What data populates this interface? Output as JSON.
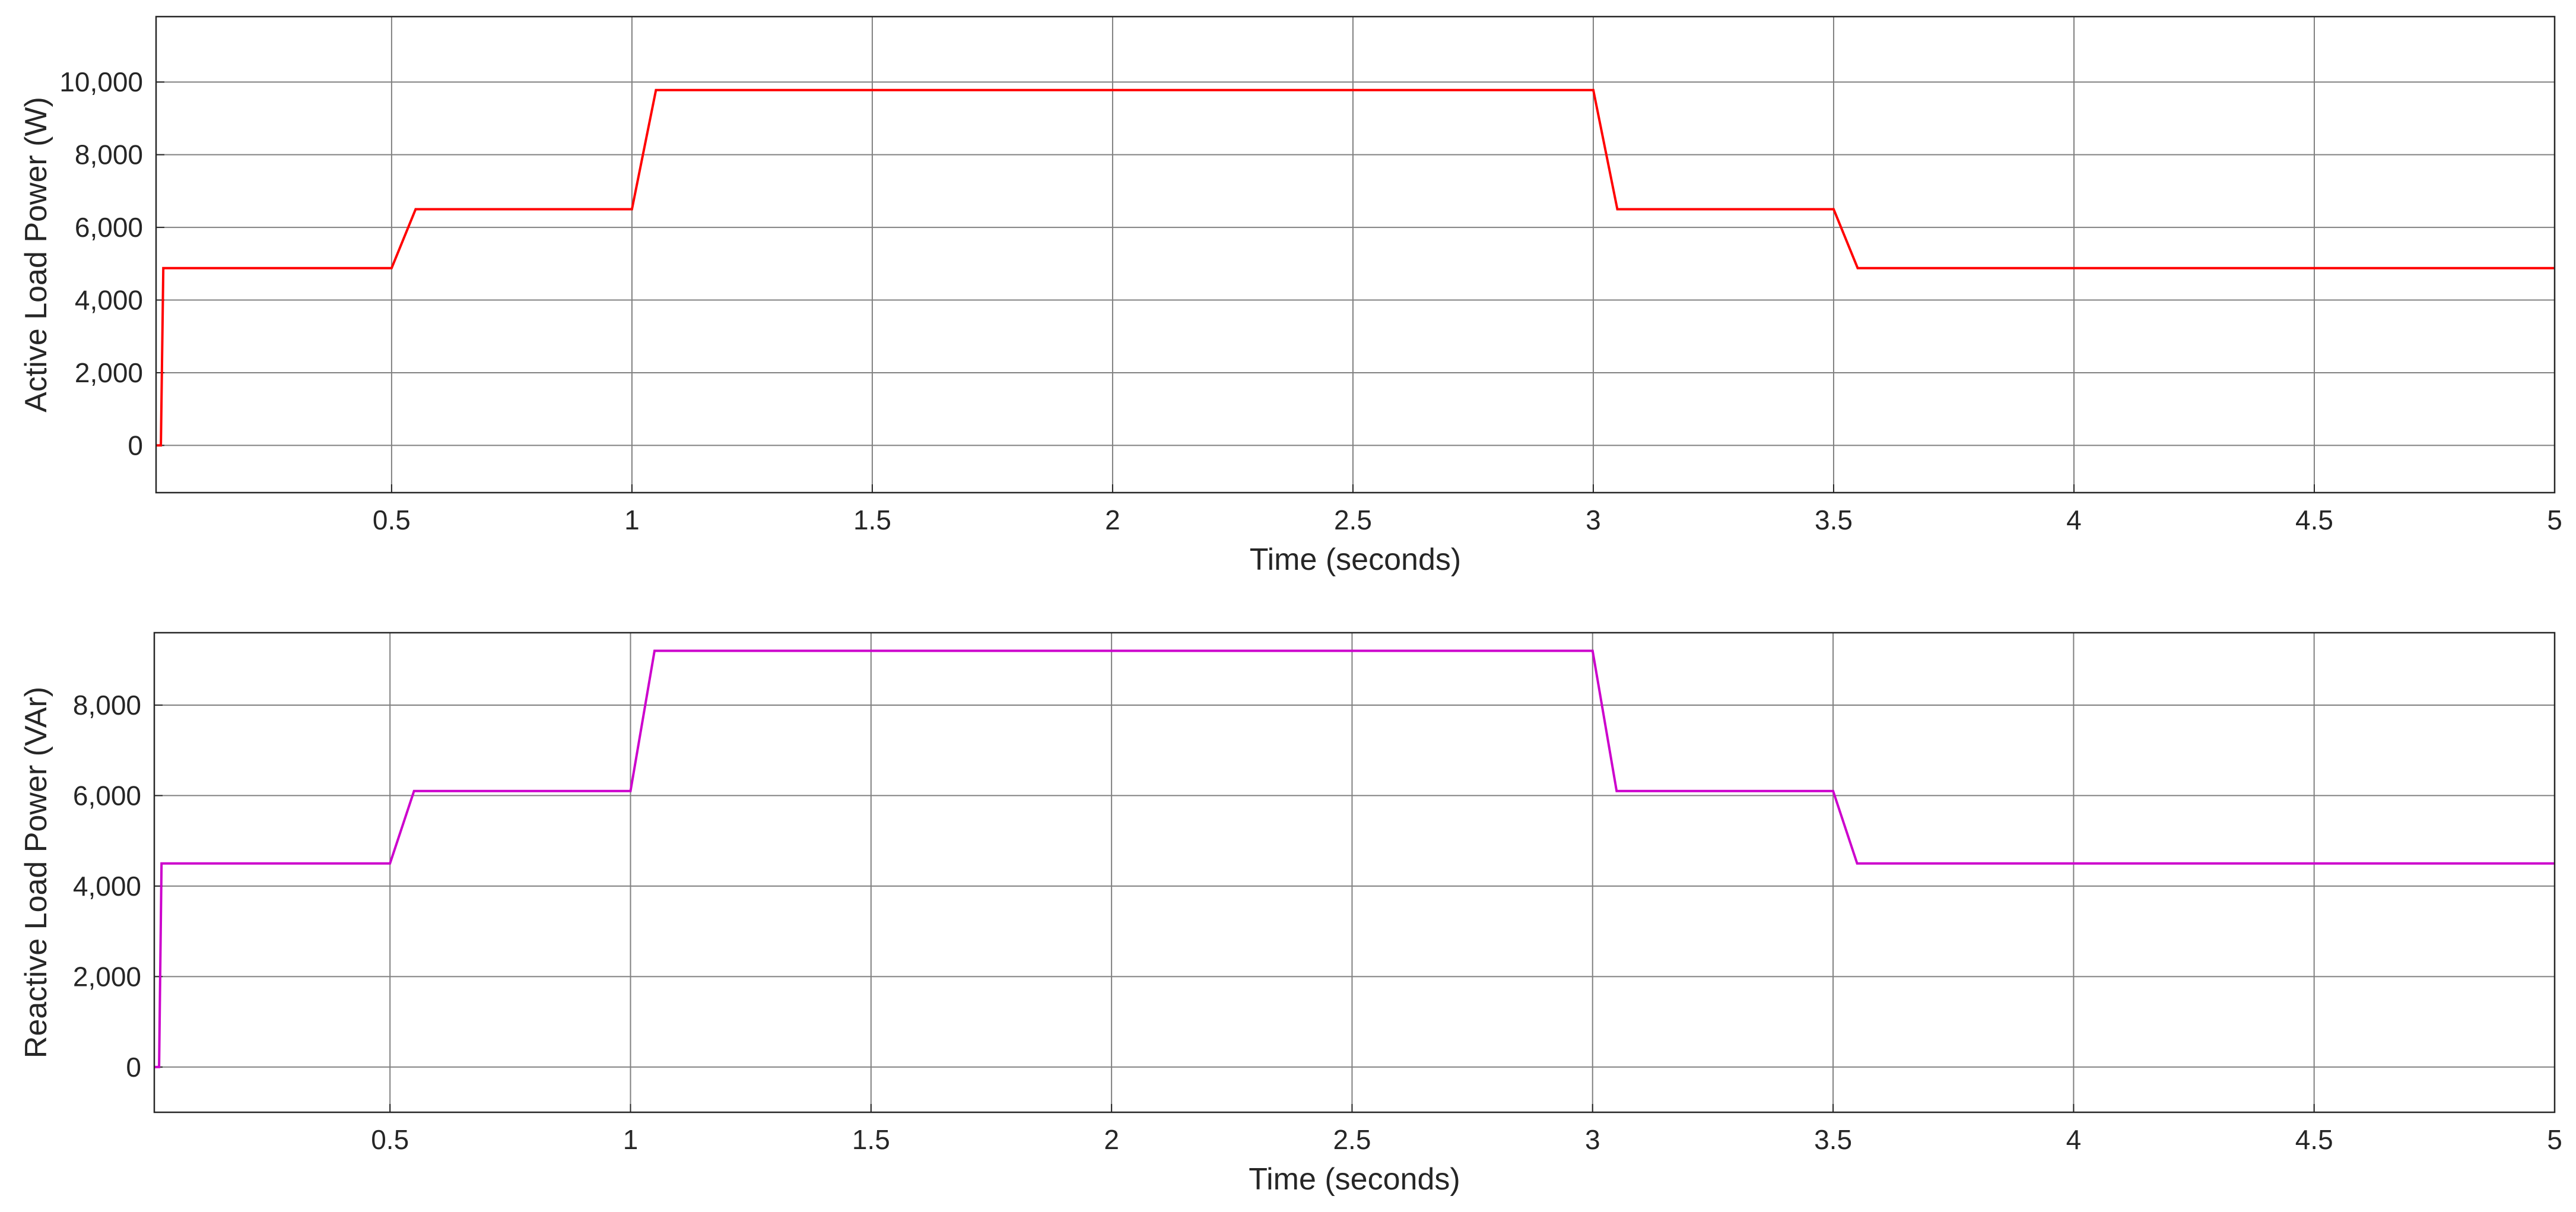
{
  "chart_data": [
    {
      "type": "line",
      "title": "",
      "xlabel": "Time (seconds)",
      "ylabel": "Active Load Power (W)",
      "xlim": [
        0.01,
        5
      ],
      "ylim": [
        -1300,
        11800
      ],
      "x_ticks": [
        0.5,
        1,
        1.5,
        2,
        2.5,
        3,
        3.5,
        4,
        4.5,
        5
      ],
      "x_tick_labels": [
        "0.5",
        "1",
        "1.5",
        "2",
        "2.5",
        "3",
        "3.5",
        "4",
        "4.5",
        "5"
      ],
      "y_ticks": [
        0,
        2000,
        4000,
        6000,
        8000,
        10000
      ],
      "y_tick_labels": [
        "0",
        "2,000",
        "4,000",
        "6,000",
        "8,000",
        "10,000"
      ],
      "grid": true,
      "legend": "none",
      "series": [
        {
          "color": "#ff0000",
          "x": [
            0.01,
            0.02,
            0.025,
            0.03,
            0.5,
            0.55,
            1.0,
            1.05,
            3.0,
            3.05,
            3.5,
            3.55,
            5.0
          ],
          "y": [
            0,
            0,
            4880,
            4880,
            4880,
            6500,
            6500,
            9780,
            9780,
            6500,
            6500,
            4880,
            4880
          ]
        }
      ]
    },
    {
      "type": "line",
      "title": "",
      "xlabel": "Time (seconds)",
      "ylabel": "Reactive Load Power (VAr)",
      "xlim": [
        0.01,
        5
      ],
      "ylim": [
        -1000,
        9600
      ],
      "x_ticks": [
        0.5,
        1,
        1.5,
        2,
        2.5,
        3,
        3.5,
        4,
        4.5,
        5
      ],
      "x_tick_labels": [
        "0.5",
        "1",
        "1.5",
        "2",
        "2.5",
        "3",
        "3.5",
        "4",
        "4.5",
        "5"
      ],
      "y_ticks": [
        0,
        2000,
        4000,
        6000,
        8000
      ],
      "y_tick_labels": [
        "0",
        "2,000",
        "4,000",
        "6,000",
        "8,000"
      ],
      "grid": true,
      "legend": "none",
      "series": [
        {
          "color": "#cc00cc",
          "x": [
            0.01,
            0.02,
            0.025,
            0.03,
            0.5,
            0.55,
            1.0,
            1.05,
            3.0,
            3.05,
            3.5,
            3.55,
            5.0
          ],
          "y": [
            0,
            0,
            4500,
            4500,
            4500,
            6100,
            6100,
            9200,
            9200,
            6100,
            6100,
            4500,
            4500
          ]
        }
      ]
    }
  ]
}
